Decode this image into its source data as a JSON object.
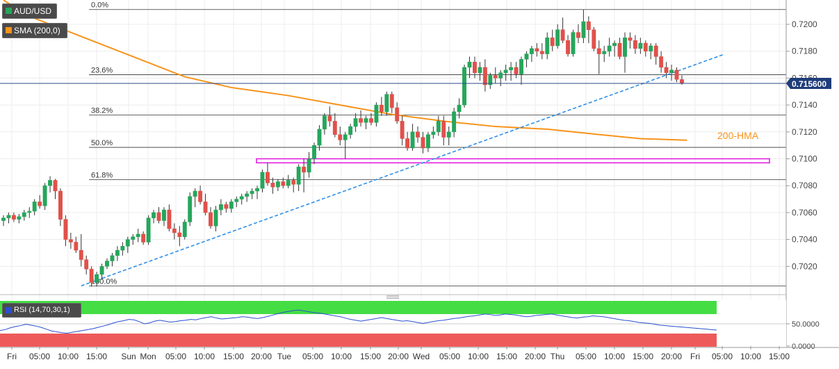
{
  "symbol_label": "AUD/USD",
  "sma_label": "SMA (200,0)",
  "hma_label": "200-HMA",
  "rsi_label": "RSI (14,70,30,1)",
  "current_price_label": "0.715600",
  "colors": {
    "bull": "#26a65b",
    "bear": "#e0514b",
    "sma": "#f7931a",
    "trend": "#2e8fe6",
    "zone": "#e020e0",
    "rsi_line": "#2a4fd0",
    "rsi_overbought": "#44dd44",
    "rsi_oversold": "#ee5a5a",
    "legend_bg": "#4a4a4a"
  },
  "fib_levels": [
    {
      "label": "0.0%",
      "value": 0.7211
    },
    {
      "label": "23.6%",
      "value": 0.71625
    },
    {
      "label": "38.2%",
      "value": 0.71325
    },
    {
      "label": "50.0%",
      "value": 0.71085
    },
    {
      "label": "61.8%",
      "value": 0.70845
    },
    {
      "label": "100.0%",
      "value": 0.70055
    }
  ],
  "x_axis_labels": [
    "Fri",
    "05:00",
    "10:00",
    "15:00",
    "Sun",
    "Mon",
    "05:00",
    "10:00",
    "15:00",
    "20:00",
    "Tue",
    "05:00",
    "10:00",
    "15:00",
    "20:00",
    "Wed",
    "05:00",
    "10:00",
    "15:00",
    "20:00",
    "Thu",
    "05:00",
    "10:00",
    "15:00",
    "20:00",
    "Fri",
    "05:00",
    "10:00",
    "15:00"
  ],
  "price_axis_labels": [
    "0.7200",
    "0.7180",
    "0.7160",
    "0.7140",
    "0.7120",
    "0.7100",
    "0.7080",
    "0.7060",
    "0.7040",
    "0.7020"
  ],
  "rsi_axis_labels": [
    "50.0000",
    "0.0000"
  ],
  "chart_data": {
    "type": "candlestick",
    "ylim": [
      0.7,
      0.7215
    ],
    "resistance_zone": [
      0.7097,
      0.71
    ],
    "current_price": 0.7156,
    "candles": [
      [
        0.7054,
        0.7058,
        0.705,
        0.7056
      ],
      [
        0.7056,
        0.706,
        0.7052,
        0.7058
      ],
      [
        0.7058,
        0.706,
        0.7053,
        0.7055
      ],
      [
        0.7055,
        0.7059,
        0.7052,
        0.7057
      ],
      [
        0.7057,
        0.7062,
        0.7054,
        0.706
      ],
      [
        0.706,
        0.7064,
        0.7056,
        0.7061
      ],
      [
        0.7061,
        0.707,
        0.7058,
        0.7068
      ],
      [
        0.7068,
        0.7073,
        0.7063,
        0.7065
      ],
      [
        0.7065,
        0.7082,
        0.7062,
        0.708
      ],
      [
        0.708,
        0.7087,
        0.7075,
        0.7084
      ],
      [
        0.7084,
        0.7085,
        0.707,
        0.7076
      ],
      [
        0.7076,
        0.7078,
        0.705,
        0.7055
      ],
      [
        0.7055,
        0.7058,
        0.7035,
        0.704
      ],
      [
        0.704,
        0.7045,
        0.7033,
        0.7038
      ],
      [
        0.7038,
        0.7042,
        0.703,
        0.7032
      ],
      [
        0.7032,
        0.7044,
        0.702,
        0.7025
      ],
      [
        0.7025,
        0.7028,
        0.7014,
        0.7018
      ],
      [
        0.7018,
        0.702,
        0.7005,
        0.7008
      ],
      [
        0.7008,
        0.7016,
        0.7005,
        0.7014
      ],
      [
        0.7014,
        0.7022,
        0.701,
        0.702
      ],
      [
        0.702,
        0.7026,
        0.7018,
        0.7024
      ],
      [
        0.7024,
        0.703,
        0.702,
        0.7028
      ],
      [
        0.7028,
        0.7035,
        0.7024,
        0.7032
      ],
      [
        0.7032,
        0.7038,
        0.7028,
        0.7035
      ],
      [
        0.7035,
        0.7042,
        0.703,
        0.704
      ],
      [
        0.704,
        0.7044,
        0.7036,
        0.7042
      ],
      [
        0.7042,
        0.7048,
        0.7038,
        0.7044
      ],
      [
        0.7044,
        0.7046,
        0.7036,
        0.7038
      ],
      [
        0.7038,
        0.7058,
        0.7036,
        0.7056
      ],
      [
        0.7056,
        0.7062,
        0.7052,
        0.706
      ],
      [
        0.706,
        0.7064,
        0.7052,
        0.7054
      ],
      [
        0.7054,
        0.7064,
        0.705,
        0.7062
      ],
      [
        0.7062,
        0.7066,
        0.7046,
        0.7048
      ],
      [
        0.7048,
        0.7052,
        0.704,
        0.7045
      ],
      [
        0.7045,
        0.705,
        0.7035,
        0.7042
      ],
      [
        0.7042,
        0.7055,
        0.704,
        0.7053
      ],
      [
        0.7053,
        0.7075,
        0.705,
        0.7072
      ],
      [
        0.7072,
        0.7078,
        0.7064,
        0.7076
      ],
      [
        0.7076,
        0.708,
        0.7066,
        0.7068
      ],
      [
        0.7068,
        0.7074,
        0.7058,
        0.706
      ],
      [
        0.706,
        0.7064,
        0.7048,
        0.705
      ],
      [
        0.705,
        0.7065,
        0.7046,
        0.7062
      ],
      [
        0.7062,
        0.707,
        0.7058,
        0.7066
      ],
      [
        0.7066,
        0.7068,
        0.706,
        0.7063
      ],
      [
        0.7063,
        0.707,
        0.706,
        0.7068
      ],
      [
        0.7068,
        0.7072,
        0.7064,
        0.707
      ],
      [
        0.707,
        0.7074,
        0.7066,
        0.7072
      ],
      [
        0.7072,
        0.7076,
        0.7068,
        0.7074
      ],
      [
        0.7074,
        0.7078,
        0.707,
        0.7076
      ],
      [
        0.7076,
        0.708,
        0.707,
        0.7078
      ],
      [
        0.7078,
        0.7092,
        0.7075,
        0.709
      ],
      [
        0.709,
        0.7097,
        0.708,
        0.7082
      ],
      [
        0.7082,
        0.7086,
        0.7074,
        0.7079
      ],
      [
        0.7079,
        0.7085,
        0.7076,
        0.7083
      ],
      [
        0.7083,
        0.7086,
        0.7078,
        0.708
      ],
      [
        0.708,
        0.7088,
        0.7078,
        0.7084
      ],
      [
        0.7084,
        0.7086,
        0.7075,
        0.7081
      ],
      [
        0.7081,
        0.7096,
        0.7076,
        0.7094
      ],
      [
        0.7094,
        0.71,
        0.7075,
        0.709
      ],
      [
        0.709,
        0.7105,
        0.7086,
        0.71
      ],
      [
        0.71,
        0.7112,
        0.7096,
        0.711
      ],
      [
        0.711,
        0.7125,
        0.7106,
        0.7122
      ],
      [
        0.7122,
        0.7134,
        0.7118,
        0.7132
      ],
      [
        0.7132,
        0.7139,
        0.7124,
        0.7128
      ],
      [
        0.7128,
        0.7134,
        0.7116,
        0.7118
      ],
      [
        0.7118,
        0.7124,
        0.711,
        0.7114
      ],
      [
        0.7114,
        0.712,
        0.71,
        0.7118
      ],
      [
        0.7118,
        0.7126,
        0.7115,
        0.7124
      ],
      [
        0.7124,
        0.7134,
        0.712,
        0.713
      ],
      [
        0.713,
        0.7136,
        0.7124,
        0.7127
      ],
      [
        0.7127,
        0.7132,
        0.7122,
        0.713
      ],
      [
        0.713,
        0.7134,
        0.7125,
        0.7127
      ],
      [
        0.7127,
        0.7142,
        0.7124,
        0.714
      ],
      [
        0.714,
        0.7146,
        0.7132,
        0.7135
      ],
      [
        0.7135,
        0.715,
        0.7132,
        0.7148
      ],
      [
        0.7148,
        0.715,
        0.7134,
        0.7138
      ],
      [
        0.7138,
        0.7142,
        0.7126,
        0.7128
      ],
      [
        0.7128,
        0.7132,
        0.711,
        0.7115
      ],
      [
        0.7115,
        0.712,
        0.7106,
        0.7108
      ],
      [
        0.7108,
        0.7126,
        0.7106,
        0.712
      ],
      [
        0.712,
        0.7124,
        0.7112,
        0.7116
      ],
      [
        0.7116,
        0.712,
        0.7104,
        0.7108
      ],
      [
        0.7108,
        0.712,
        0.7105,
        0.7118
      ],
      [
        0.7118,
        0.7124,
        0.7115,
        0.712
      ],
      [
        0.712,
        0.7132,
        0.7117,
        0.7128
      ],
      [
        0.7128,
        0.7132,
        0.711,
        0.7116
      ],
      [
        0.7116,
        0.7124,
        0.711,
        0.712
      ],
      [
        0.712,
        0.7138,
        0.7116,
        0.7135
      ],
      [
        0.7135,
        0.7145,
        0.713,
        0.714
      ],
      [
        0.714,
        0.717,
        0.7138,
        0.7168
      ],
      [
        0.7168,
        0.7176,
        0.716,
        0.7172
      ],
      [
        0.7172,
        0.7176,
        0.716,
        0.7164
      ],
      [
        0.7164,
        0.7172,
        0.7158,
        0.7168
      ],
      [
        0.7168,
        0.7174,
        0.715,
        0.7155
      ],
      [
        0.7155,
        0.7164,
        0.7152,
        0.7162
      ],
      [
        0.7162,
        0.7168,
        0.7156,
        0.716
      ],
      [
        0.716,
        0.7166,
        0.7154,
        0.7164
      ],
      [
        0.7164,
        0.717,
        0.7158,
        0.7166
      ],
      [
        0.7166,
        0.7172,
        0.7158,
        0.7168
      ],
      [
        0.7168,
        0.7172,
        0.716,
        0.7163
      ],
      [
        0.7163,
        0.7176,
        0.7155,
        0.7174
      ],
      [
        0.7174,
        0.718,
        0.7168,
        0.7178
      ],
      [
        0.7178,
        0.7184,
        0.7172,
        0.7182
      ],
      [
        0.7182,
        0.7186,
        0.7176,
        0.718
      ],
      [
        0.718,
        0.7186,
        0.7174,
        0.7178
      ],
      [
        0.7178,
        0.7194,
        0.7174,
        0.719
      ],
      [
        0.719,
        0.7196,
        0.718,
        0.7184
      ],
      [
        0.7184,
        0.72,
        0.7182,
        0.7196
      ],
      [
        0.7196,
        0.7205,
        0.7186,
        0.7188
      ],
      [
        0.7188,
        0.7192,
        0.7176,
        0.7178
      ],
      [
        0.7178,
        0.7196,
        0.7176,
        0.7194
      ],
      [
        0.7194,
        0.72,
        0.7186,
        0.719
      ],
      [
        0.719,
        0.7211,
        0.7186,
        0.7202
      ],
      [
        0.7202,
        0.7206,
        0.7186,
        0.7196
      ],
      [
        0.7196,
        0.7198,
        0.718,
        0.7182
      ],
      [
        0.7182,
        0.7188,
        0.7163,
        0.7178
      ],
      [
        0.7178,
        0.7184,
        0.7172,
        0.718
      ],
      [
        0.718,
        0.719,
        0.7176,
        0.7184
      ],
      [
        0.7184,
        0.7188,
        0.7176,
        0.7186
      ],
      [
        0.7186,
        0.719,
        0.7174,
        0.7176
      ],
      [
        0.7176,
        0.7194,
        0.7164,
        0.719
      ],
      [
        0.719,
        0.7194,
        0.7182,
        0.7188
      ],
      [
        0.7188,
        0.7192,
        0.7178,
        0.7182
      ],
      [
        0.7182,
        0.719,
        0.7178,
        0.7186
      ],
      [
        0.7186,
        0.7188,
        0.7176,
        0.718
      ],
      [
        0.718,
        0.7186,
        0.7174,
        0.7184
      ],
      [
        0.7184,
        0.7186,
        0.717,
        0.7176
      ],
      [
        0.7176,
        0.718,
        0.7164,
        0.7168
      ],
      [
        0.7168,
        0.7172,
        0.716,
        0.7164
      ],
      [
        0.7164,
        0.717,
        0.7158,
        0.7166
      ],
      [
        0.7166,
        0.7168,
        0.7157,
        0.7159
      ],
      [
        0.7159,
        0.7162,
        0.7155,
        0.7156
      ]
    ],
    "sma_200": [
      [
        0,
        0.7218
      ],
      [
        5,
        0.7206
      ],
      [
        15,
        0.7191
      ],
      [
        25,
        0.7176
      ],
      [
        35,
        0.7161
      ],
      [
        44,
        0.7153
      ],
      [
        55,
        0.7147
      ],
      [
        65,
        0.714
      ],
      [
        75,
        0.7133
      ],
      [
        85,
        0.7128
      ],
      [
        95,
        0.7124
      ],
      [
        105,
        0.7122
      ],
      [
        115,
        0.7118
      ],
      [
        123,
        0.7115
      ],
      [
        132,
        0.71138
      ]
    ],
    "trendline": [
      [
        15,
        0.70055
      ],
      [
        139,
        0.71775
      ]
    ],
    "rsi": [
      35,
      37,
      41,
      44,
      46,
      49,
      47,
      45,
      42,
      38,
      34,
      32,
      30,
      29,
      31,
      33,
      35,
      37,
      39,
      42,
      45,
      48,
      52,
      55,
      57,
      60,
      59,
      55,
      50,
      52,
      56,
      58,
      56,
      54,
      55,
      57,
      58,
      60,
      59,
      62,
      64,
      66,
      63,
      61,
      62,
      63,
      64,
      66,
      65,
      63,
      62,
      64,
      67,
      70,
      73,
      76,
      78,
      80,
      81,
      79,
      77,
      75,
      74,
      72,
      70,
      68,
      66,
      63,
      60,
      58,
      56,
      58,
      60,
      62,
      64,
      62,
      60,
      58,
      56,
      57,
      55,
      53,
      51,
      53,
      55,
      57,
      58,
      60,
      62,
      63,
      65,
      67,
      68,
      70,
      72,
      71,
      69,
      70,
      72,
      71,
      70,
      68,
      66,
      67,
      69,
      70,
      71,
      72,
      70,
      68,
      66,
      64,
      63,
      65,
      66,
      68,
      67,
      66,
      64,
      62,
      60,
      58,
      57,
      55,
      53,
      52,
      51,
      49,
      47,
      46,
      45,
      44,
      43,
      42,
      41,
      40,
      39,
      38,
      37,
      36
    ]
  }
}
